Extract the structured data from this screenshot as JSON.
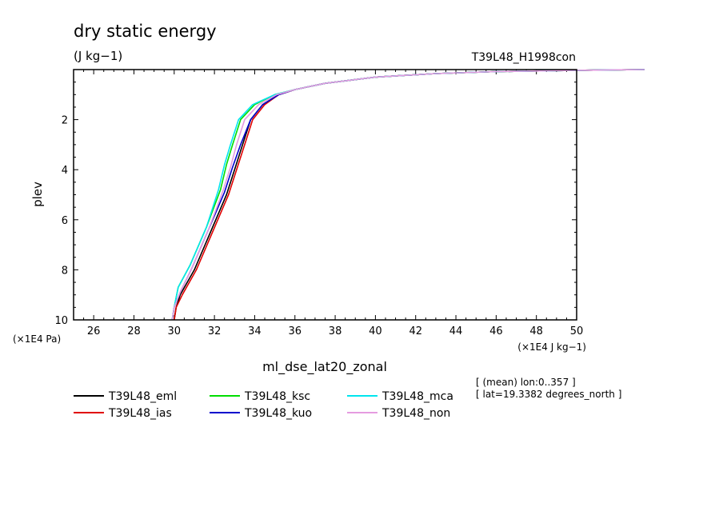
{
  "chart_data": {
    "type": "line",
    "title": "dry static energy",
    "subtitle": "(J kg−1)",
    "run_label": "T39L48_H1998con",
    "xlabel": "ml_dse_lat20_zonal",
    "ylabel": "plev",
    "x_unit": "(×1E4 J kg−1)",
    "y_unit": "(×1E4 Pa)",
    "xlim": [
      25,
      50
    ],
    "ylim": [
      10,
      0
    ],
    "x_ticks": [
      26,
      28,
      30,
      32,
      34,
      36,
      38,
      40,
      42,
      44,
      46,
      48,
      50
    ],
    "y_ticks": [
      2,
      4,
      6,
      8,
      10
    ],
    "y_tick_labels": [
      "2",
      "4",
      "6",
      "8",
      "10"
    ],
    "info_lines": [
      "[ (mean) lon:0..357 ]",
      "[ lat=19.3382 degrees_north ]"
    ],
    "series": [
      {
        "name": "T39L48_eml",
        "color": "#000000",
        "x": [
          30.0,
          30.1,
          30.3,
          31.0,
          31.8,
          32.6,
          33.0,
          33.4,
          33.8,
          34.4,
          35.2,
          36.0,
          37.5,
          40.0,
          43.0,
          46.0,
          50.0,
          53.5
        ],
        "y": [
          10.0,
          9.5,
          9.0,
          8.0,
          6.5,
          5.0,
          4.0,
          3.0,
          2.0,
          1.4,
          1.0,
          0.8,
          0.55,
          0.3,
          0.16,
          0.08,
          0.03,
          0.0
        ]
      },
      {
        "name": "T39L48_ias",
        "color": "#e00000",
        "x": [
          30.0,
          30.1,
          30.4,
          31.1,
          31.9,
          32.7,
          33.1,
          33.5,
          33.9,
          34.5,
          35.2,
          36.0,
          37.5,
          40.0,
          43.0,
          46.0,
          50.0,
          53.5
        ],
        "y": [
          10.0,
          9.5,
          9.0,
          8.0,
          6.5,
          5.0,
          4.0,
          3.0,
          2.0,
          1.4,
          1.0,
          0.8,
          0.55,
          0.3,
          0.16,
          0.08,
          0.03,
          0.0
        ]
      },
      {
        "name": "T39L48_ksc",
        "color": "#00dd00",
        "x": [
          29.9,
          30.0,
          30.2,
          30.8,
          31.6,
          32.3,
          32.6,
          32.9,
          33.3,
          34.0,
          35.0,
          36.0,
          37.5,
          40.0,
          43.0,
          46.0,
          50.0,
          53.5
        ],
        "y": [
          10.0,
          9.5,
          8.7,
          7.8,
          6.3,
          4.8,
          3.8,
          3.0,
          2.0,
          1.4,
          1.0,
          0.8,
          0.55,
          0.3,
          0.16,
          0.08,
          0.03,
          0.0
        ]
      },
      {
        "name": "T39L48_kuo",
        "color": "#0000cc",
        "x": [
          29.9,
          30.0,
          30.3,
          30.9,
          31.7,
          32.5,
          32.9,
          33.3,
          33.8,
          34.4,
          35.2,
          36.0,
          37.5,
          40.0,
          43.0,
          46.0,
          50.0,
          53.5
        ],
        "y": [
          10.0,
          9.5,
          8.9,
          7.9,
          6.4,
          4.9,
          3.9,
          3.0,
          2.0,
          1.4,
          1.0,
          0.8,
          0.55,
          0.3,
          0.16,
          0.08,
          0.03,
          0.0
        ]
      },
      {
        "name": "T39L48_mca",
        "color": "#00e5ee",
        "x": [
          29.9,
          30.0,
          30.2,
          30.8,
          31.6,
          32.2,
          32.5,
          32.8,
          33.2,
          33.9,
          35.0,
          36.0,
          37.5,
          40.0,
          43.0,
          46.0,
          50.0,
          53.5
        ],
        "y": [
          10.0,
          9.5,
          8.7,
          7.8,
          6.3,
          4.8,
          3.8,
          3.0,
          2.0,
          1.4,
          1.0,
          0.8,
          0.55,
          0.3,
          0.16,
          0.08,
          0.03,
          0.0
        ]
      },
      {
        "name": "T39L48_non",
        "color": "#e59ce0",
        "x": [
          29.9,
          30.0,
          30.3,
          30.9,
          31.7,
          32.4,
          32.8,
          33.1,
          33.5,
          34.2,
          35.1,
          36.0,
          37.5,
          40.0,
          43.0,
          46.0,
          50.0,
          53.5
        ],
        "y": [
          10.0,
          9.5,
          8.9,
          7.9,
          6.4,
          4.9,
          3.9,
          3.0,
          2.0,
          1.4,
          1.0,
          0.8,
          0.55,
          0.3,
          0.16,
          0.08,
          0.03,
          0.0
        ]
      }
    ],
    "legend_placement": "below",
    "grid": false
  }
}
